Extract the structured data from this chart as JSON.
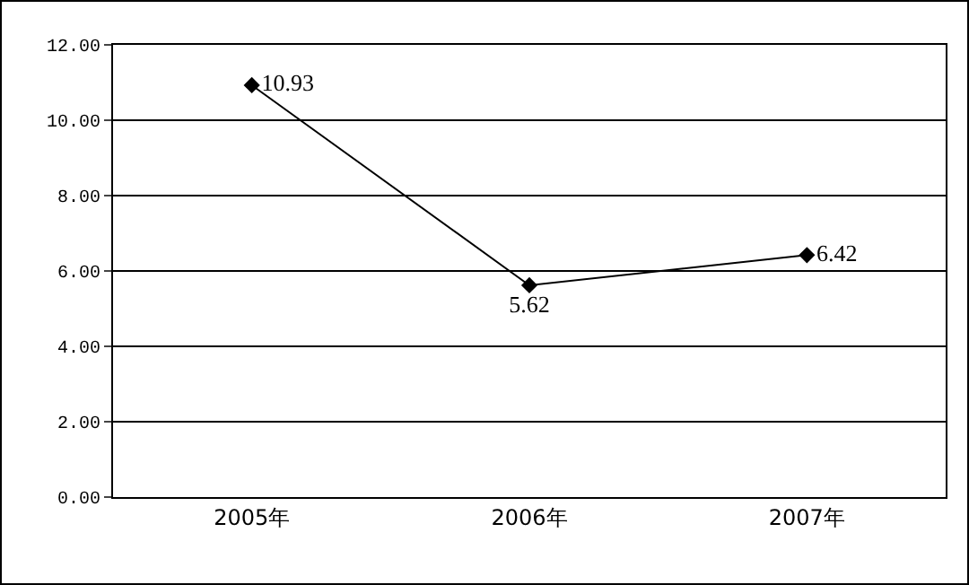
{
  "chart_data": {
    "type": "line",
    "categories": [
      "2005年",
      "2006年",
      "2007年"
    ],
    "series": [
      {
        "color": "#000000",
        "values": [
          10.93,
          5.62,
          6.42
        ]
      }
    ],
    "ylim": [
      0,
      12
    ],
    "yticks": [
      {
        "value": 0,
        "label": "0.00"
      },
      {
        "value": 2,
        "label": "2.00"
      },
      {
        "value": 4,
        "label": "4.00"
      },
      {
        "value": 6,
        "label": "6.00"
      },
      {
        "value": 8,
        "label": "8.00"
      },
      {
        "value": 10,
        "label": "10.00"
      },
      {
        "value": 12,
        "label": "12.00"
      }
    ],
    "grid": "y",
    "marker": "diamond",
    "line_style": "solid",
    "data_labels": true
  }
}
